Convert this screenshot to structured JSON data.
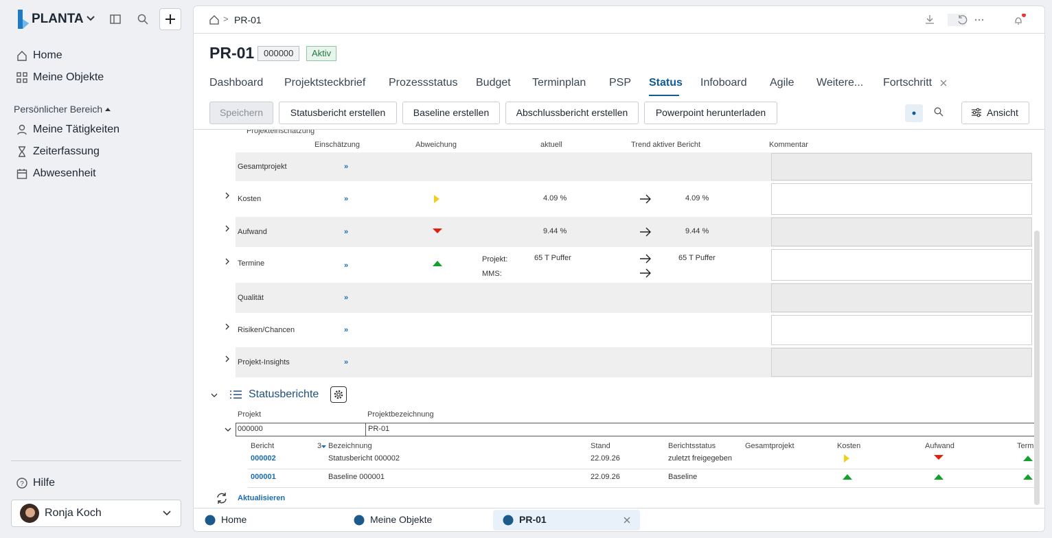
{
  "sidebar": {
    "brand": "PLANTA",
    "nav": [
      "Home",
      "Meine Objekte"
    ],
    "section_title": "Persönlicher Bereich",
    "section_items": [
      "Meine Tätigkeiten",
      "Zeiterfassung",
      "Abwesenheit"
    ],
    "help": "Hilfe",
    "user": "Ronja Koch"
  },
  "header": {
    "breadcrumb": "PR-01",
    "title": "PR-01",
    "number": "000000",
    "status": "Aktiv"
  },
  "tabs": {
    "items": [
      "Dashboard",
      "Projektsteckbrief",
      "Prozessstatus",
      "Budget",
      "Terminplan",
      "PSP",
      "Status",
      "Infoboard",
      "Agile",
      "Weitere...",
      "Fortschritt"
    ],
    "active": "Status"
  },
  "toolbar": {
    "buttons": [
      "Speichern",
      "Statusbericht erstellen",
      "Baseline erstellen",
      "Abschlussbericht erstellen",
      "Powerpoint herunterladen"
    ],
    "view": "Ansicht"
  },
  "assessment": {
    "title": "Projekteinschätzung",
    "columns": [
      "Einschätzung",
      "Abweichung",
      "aktuell",
      "Trend aktiver Bericht",
      "Kommentar"
    ],
    "more": "»",
    "rows": [
      {
        "label": "Gesamtprojekt",
        "expandable": false,
        "indicator": null,
        "lines": []
      },
      {
        "label": "Kosten",
        "expandable": true,
        "indicator": "yellow",
        "lines": [
          {
            "current": "4.09 %",
            "trend": "4.09 %"
          }
        ]
      },
      {
        "label": "Aufwand",
        "expandable": true,
        "indicator": "red",
        "lines": [
          {
            "current": "9.44 %",
            "trend": "9.44 %"
          }
        ]
      },
      {
        "label": "Termine",
        "expandable": true,
        "indicator": "green",
        "lines": [
          {
            "label": "Projekt:",
            "current": "65 T Puffer",
            "trend": "65 T Puffer"
          },
          {
            "label": "MMS:"
          }
        ]
      },
      {
        "label": "Qualität",
        "expandable": false,
        "indicator": null,
        "lines": []
      },
      {
        "label": "Risiken/Chancen",
        "expandable": true,
        "indicator": null,
        "lines": []
      },
      {
        "label": "Projekt-Insights",
        "expandable": true,
        "indicator": null,
        "lines": []
      }
    ]
  },
  "reports": {
    "title": "Statusberichte",
    "project_columns": [
      "Projekt",
      "Projektbezeichnung"
    ],
    "project_row": [
      "000000",
      "PR-01"
    ],
    "columns": [
      "Bericht",
      "3",
      "Bezeichnung",
      "Stand",
      "Berichtsstatus",
      "Gesamtprojekt",
      "Kosten",
      "Aufwand",
      "Termine"
    ],
    "rows": [
      {
        "id": "000002",
        "name": "Statusbericht 000002",
        "date": "22.09.26",
        "status": "zuletzt freigegeben",
        "indicators": [
          null,
          "yellow",
          "red",
          "green"
        ]
      },
      {
        "id": "000001",
        "name": "Baseline 000001",
        "date": "22.09.26",
        "status": "Baseline",
        "indicators": [
          null,
          "green",
          "green",
          "green"
        ]
      }
    ],
    "refresh": "Aktualisieren"
  },
  "bottom_tabs": [
    "Home",
    "Meine Objekte",
    "PR-01"
  ]
}
